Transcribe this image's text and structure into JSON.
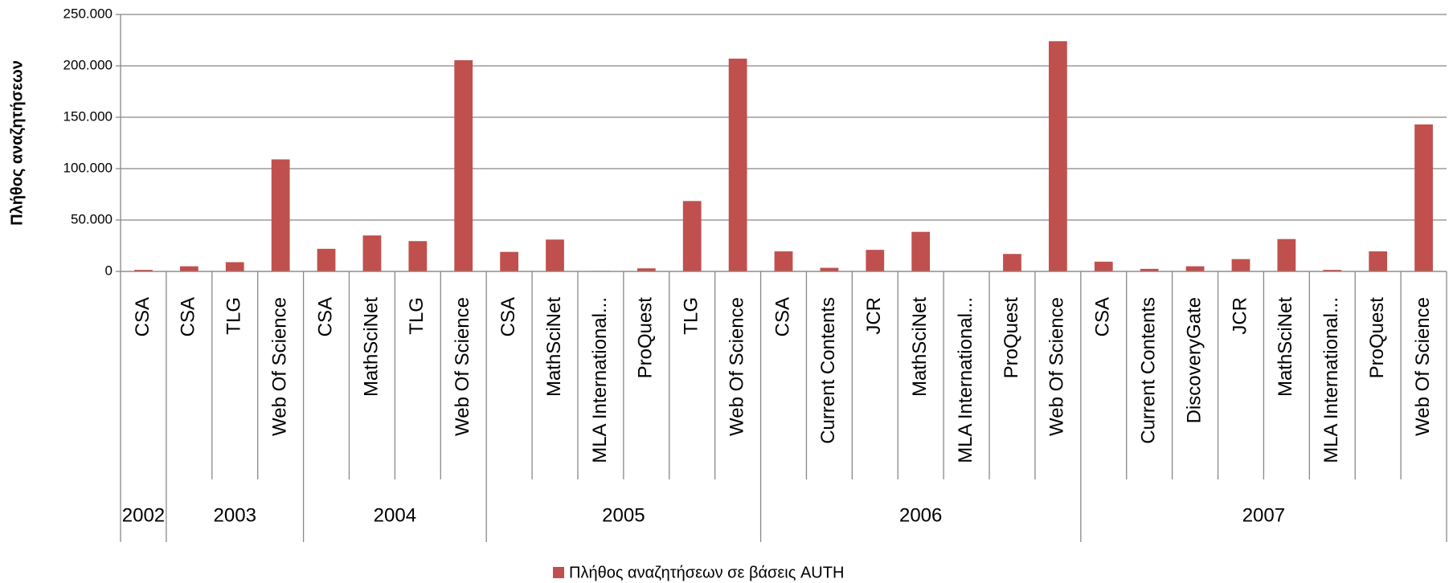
{
  "chart_data": {
    "type": "bar",
    "y_axis_label": "Πλήθος αναζητήσεων",
    "groups": [
      {
        "label": "2002",
        "categories": [
          "CSA"
        ]
      },
      {
        "label": "2003",
        "categories": [
          "CSA",
          "TLG",
          "Web Of Science"
        ]
      },
      {
        "label": "2004",
        "categories": [
          "CSA",
          "MathSciNet",
          "TLG",
          "Web Of Science"
        ]
      },
      {
        "label": "2005",
        "categories": [
          "CSA",
          "MathSciNet",
          "MLA International...",
          "ProQuest",
          "TLG",
          "Web Of Science"
        ]
      },
      {
        "label": "2006",
        "categories": [
          "CSA",
          "Current Contents",
          "JCR",
          "MathSciNet",
          "MLA International...",
          "ProQuest",
          "Web Of Science"
        ]
      },
      {
        "label": "2007",
        "categories": [
          "CSA",
          "Current Contents",
          "DiscoveryGate",
          "JCR",
          "MathSciNet",
          "MLA International...",
          "ProQuest",
          "Web Of Science"
        ]
      }
    ],
    "series": [
      {
        "name": "Πλήθος αναζητήσεων σε βάσεις AUTH",
        "color": "#c0504d",
        "values": [
          1500,
          5000,
          9000,
          109000,
          22000,
          35000,
          29500,
          205500,
          19000,
          31000,
          500,
          3000,
          68500,
          207000,
          19500,
          3500,
          21000,
          38500,
          300,
          17000,
          224000,
          9500,
          2500,
          5000,
          12000,
          31500,
          1500,
          19500,
          143000
        ]
      }
    ],
    "ylim": [
      0,
      250000
    ],
    "yticks": [
      0,
      {
        "value": 50000,
        "label": "50.000"
      },
      {
        "value": 100000,
        "label": "100.000"
      },
      {
        "value": 150000,
        "label": "150.000"
      },
      {
        "value": 200000,
        "label": "200.000"
      },
      {
        "value": 250000,
        "label": "250.000"
      }
    ],
    "grid": true,
    "legend": "bottom"
  }
}
